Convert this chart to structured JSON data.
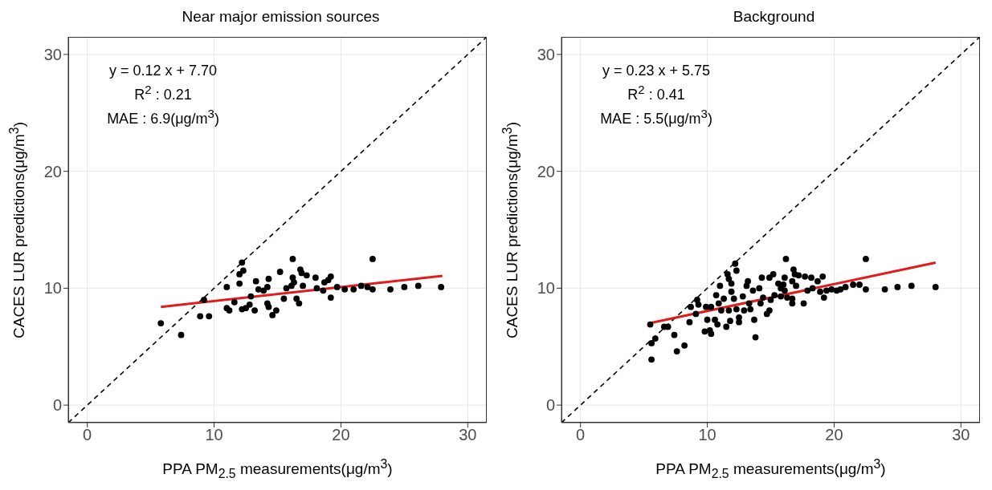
{
  "chart_data": [
    {
      "type": "scatter",
      "title": "Near major emission sources",
      "xlabel": "PPA PM$_{2.5}$ measurements(μg/m$^{3}$)",
      "ylabel": "CACES LUR predictions(μg/m$^{3}$)",
      "xlim": [
        -1.5,
        31.5
      ],
      "ylim": [
        -1.5,
        31.5
      ],
      "xticks": [
        0,
        10,
        20,
        30
      ],
      "yticks": [
        0,
        10,
        20,
        30
      ],
      "grid": true,
      "annotations": [
        "y = 0.12 x + 7.70",
        "R$^{2}$ : 0.21",
        "MAE : 6.9(μg/m$^{3}$)"
      ],
      "series": [
        {
          "type": "line",
          "color": "#000000",
          "line_style": "dashed",
          "x": [
            -1.5,
            31.5
          ],
          "values": [
            -1.5,
            31.5
          ]
        },
        {
          "marker": "circle",
          "color": "#000000",
          "x": [
            5.8,
            7.4,
            8.9,
            9.6,
            9.2,
            11.0,
            11.0,
            11.2,
            11.6,
            12.2,
            12.0,
            12.3,
            12.0,
            12.2,
            12.5,
            12.8,
            12.9,
            13.2,
            13.3,
            13.5,
            13.9,
            14.2,
            14.3,
            14.2,
            14.3,
            14.6,
            14.9,
            15.2,
            15.5,
            15.7,
            16.1,
            16.2,
            16.2,
            16.3,
            16.5,
            16.7,
            16.8,
            16.9,
            17.0,
            17.3,
            18.0,
            18.1,
            18.6,
            18.7,
            19.0,
            19.2,
            19.2,
            19.7,
            20.3,
            21.0,
            21.6,
            22.1,
            22.5,
            22.5,
            23.9,
            25.0,
            26.1,
            27.9
          ],
          "values": [
            7.0,
            6.0,
            7.6,
            7.6,
            9.0,
            10.1,
            8.3,
            8.1,
            8.8,
            12.2,
            11.2,
            11.5,
            10.4,
            8.2,
            8.3,
            8.6,
            9.3,
            8.1,
            10.6,
            9.9,
            9.8,
            10.1,
            10.8,
            8.7,
            8.4,
            7.7,
            8.1,
            11.4,
            9.1,
            10.0,
            10.2,
            12.5,
            10.9,
            10.5,
            9.1,
            8.7,
            11.6,
            11.3,
            10.2,
            11.1,
            10.9,
            10.0,
            9.8,
            10.5,
            10.7,
            11.0,
            9.2,
            10.1,
            9.9,
            9.9,
            10.2,
            10.1,
            9.9,
            12.5,
            9.9,
            10.1,
            10.2,
            10.1
          ]
        },
        {
          "type": "line",
          "color": "#e31a1c",
          "line_style": "solid",
          "x": [
            5.8,
            28
          ],
          "values": [
            8.4,
            11.06
          ]
        }
      ]
    },
    {
      "type": "scatter",
      "title": "Background",
      "xlabel": "PPA PM$_{2.5}$ measurements(μg/m$^{3}$)",
      "ylabel": "CACES LUR predictions(μg/m$^{3}$)",
      "xlim": [
        -1.5,
        31.5
      ],
      "ylim": [
        -1.5,
        31.5
      ],
      "xticks": [
        0,
        10,
        20,
        30
      ],
      "yticks": [
        0,
        10,
        20,
        30
      ],
      "grid": true,
      "annotations": [
        "y = 0.23 x + 5.75",
        "R$^{2}$ : 0.41",
        "MAE : 5.5(μg/m$^{3}$)"
      ],
      "series": [
        {
          "type": "line",
          "color": "#000000",
          "line_style": "dashed",
          "x": [
            -1.5,
            31.5
          ],
          "values": [
            -1.5,
            31.5
          ]
        },
        {
          "marker": "circle",
          "color": "#000000",
          "x": [
            5.6,
            5.6,
            5.9,
            5.5,
            6.6,
            6.9,
            7.4,
            7.6,
            8.2,
            8.6,
            8.7,
            9.2,
            9.3,
            9.1,
            9.8,
            10.2,
            10.3,
            10.0,
            9.9,
            10.3,
            10.6,
            10.8,
            10.7,
            11.0,
            10.9,
            11.1,
            11.3,
            11.5,
            11.8,
            11.7,
            11.6,
            11.7,
            11.9,
            11.9,
            12.2,
            12.3,
            12.1,
            12.3,
            12.5,
            12.5,
            12.8,
            12.9,
            13.1,
            13.2,
            13.3,
            13.4,
            13.6,
            13.7,
            13.8,
            14.1,
            14.2,
            14.3,
            14.4,
            14.7,
            14.9,
            14.9,
            15.2,
            15.0,
            15.3,
            15.6,
            15.8,
            15.8,
            16.0,
            16.1,
            16.2,
            16.1,
            16.3,
            16.7,
            16.7,
            16.8,
            16.9,
            16.7,
            17.0,
            17.2,
            17.6,
            17.7,
            17.9,
            18.2,
            18.3,
            18.7,
            18.9,
            19.1,
            19.2,
            19.4,
            19.8,
            20.2,
            20.5,
            20.9,
            21.5,
            22.0,
            22.5,
            22.5,
            24.0,
            25.0,
            26.1,
            28.0
          ],
          "values": [
            3.9,
            5.3,
            5.7,
            6.9,
            6.7,
            6.7,
            6.0,
            4.6,
            5.1,
            7.1,
            8.4,
            9.0,
            8.6,
            7.8,
            6.3,
            6.4,
            6.1,
            7.3,
            8.4,
            8.4,
            7.3,
            6.9,
            9.4,
            10.2,
            8.7,
            8.1,
            9.1,
            6.7,
            7.2,
            8.1,
            11.2,
            10.8,
            10.4,
            9.7,
            12.1,
            11.5,
            9.1,
            8.2,
            7.5,
            7.1,
            9.3,
            8.1,
            10.2,
            10.6,
            8.7,
            8.2,
            9.8,
            7.3,
            5.8,
            10.0,
            8.7,
            10.9,
            9.2,
            7.8,
            8.1,
            10.9,
            11.2,
            9.0,
            9.4,
            10.4,
            10.0,
            9.3,
            10.3,
            10.9,
            12.5,
            9.8,
            9.2,
            9.1,
            8.7,
            11.6,
            11.2,
            10.6,
            10.2,
            11.1,
            8.7,
            11.0,
            9.8,
            10.9,
            10.0,
            10.6,
            9.7,
            11.0,
            9.2,
            9.8,
            9.9,
            9.8,
            9.9,
            10.1,
            10.3,
            10.3,
            12.5,
            9.9,
            9.9,
            10.1,
            10.2,
            10.1
          ]
        },
        {
          "type": "line",
          "color": "#e31a1c",
          "line_style": "solid",
          "x": [
            5.6,
            28
          ],
          "values": [
            7.04,
            12.19
          ]
        }
      ]
    }
  ]
}
